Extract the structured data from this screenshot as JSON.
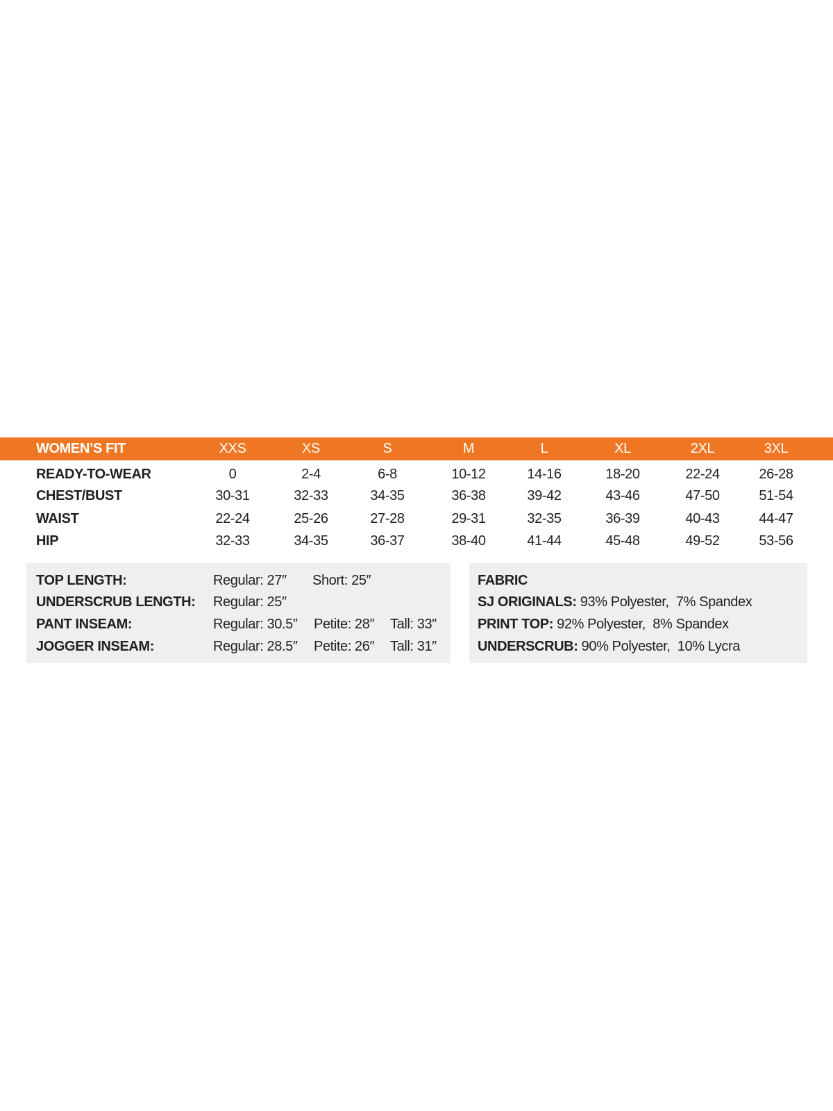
{
  "header": {
    "title": "WOMEN’S FIT",
    "sizes": [
      "XXS",
      "XS",
      "S",
      "M",
      "L",
      "XL",
      "2XL",
      "3XL"
    ]
  },
  "rows": [
    {
      "label": "READY-TO-WEAR",
      "values": [
        "0",
        "2-4",
        "6-8",
        "10-12",
        "14-16",
        "18-20",
        "22-24",
        "26-28"
      ]
    },
    {
      "label": "CHEST/BUST",
      "values": [
        "30-31",
        "32-33",
        "34-35",
        "36-38",
        "39-42",
        "43-46",
        "47-50",
        "51-54"
      ]
    },
    {
      "label": "WAIST",
      "values": [
        "22-24",
        "25-26",
        "27-28",
        "29-31",
        "32-35",
        "36-39",
        "40-43",
        "44-47"
      ]
    },
    {
      "label": "HIP",
      "values": [
        "32-33",
        "34-35",
        "36-37",
        "38-40",
        "41-44",
        "45-48",
        "49-52",
        "53-56"
      ]
    }
  ],
  "lengths": [
    {
      "label": "TOP LENGTH:",
      "values": [
        "Regular: 27″",
        "Short: 25″"
      ]
    },
    {
      "label": "UNDERSCRUB LENGTH:",
      "values": [
        "Regular: 25″"
      ]
    },
    {
      "label": "PANT INSEAM:",
      "values": [
        "Regular: 30.5″",
        "Petite: 28″",
        "Tall: 33″"
      ]
    },
    {
      "label": "JOGGER INSEAM:",
      "values": [
        "Regular: 28.5″",
        "Petite: 26″",
        "Tall: 31″"
      ]
    }
  ],
  "fabric": {
    "title": "FABRIC",
    "items": [
      {
        "label": "SJ ORIGINALS:",
        "value": "93% Polyester,  7% Spandex"
      },
      {
        "label": "PRINT TOP:",
        "value": "92% Polyester,  8% Spandex"
      },
      {
        "label": "UNDERSCRUB:",
        "value": "90% Polyester,  10% Lycra"
      }
    ]
  },
  "colors": {
    "accent": "#ef7622",
    "panel": "#eeefee",
    "text": "#231f20"
  }
}
